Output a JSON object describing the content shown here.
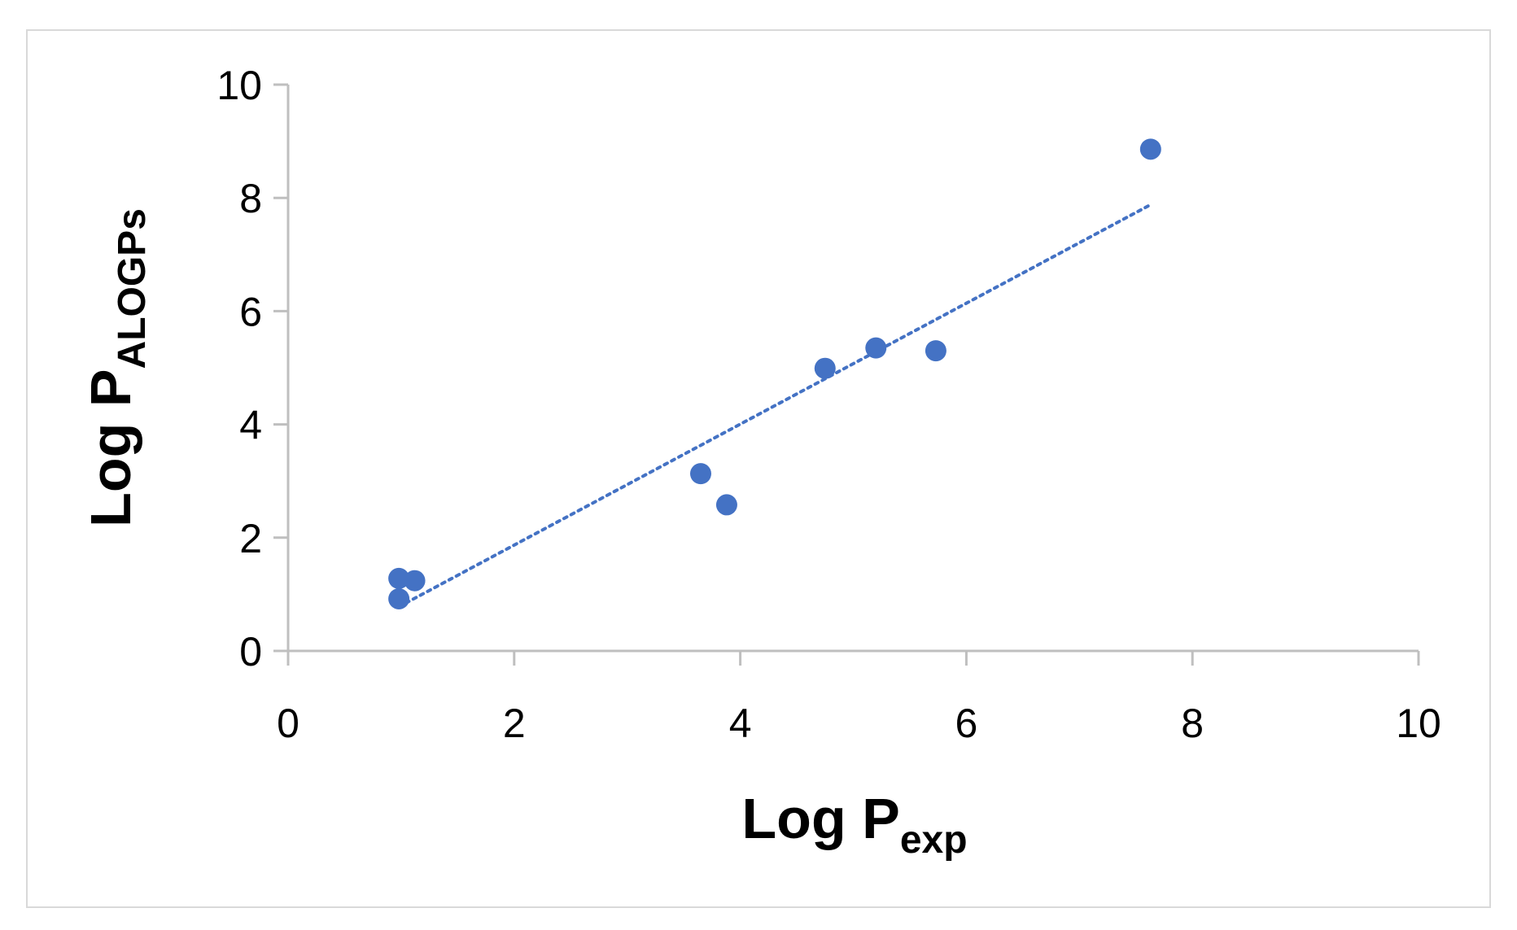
{
  "chart_data": {
    "type": "scatter",
    "title": "",
    "xlabel": {
      "main": "Log P",
      "subscript": "exp"
    },
    "ylabel": {
      "main": "Log P",
      "subscript": "ALOGPs"
    },
    "xlim": [
      0,
      10
    ],
    "ylim": [
      0,
      10
    ],
    "x_ticks": [
      0,
      2,
      4,
      6,
      8,
      10
    ],
    "y_ticks": [
      0,
      2,
      4,
      6,
      8,
      10
    ],
    "grid": false,
    "legend": "none",
    "series": [
      {
        "points": [
          {
            "x": 0.98,
            "y": 1.28
          },
          {
            "x": 1.12,
            "y": 1.24
          },
          {
            "x": 0.98,
            "y": 0.92
          },
          {
            "x": 3.65,
            "y": 3.13
          },
          {
            "x": 3.88,
            "y": 2.58
          },
          {
            "x": 4.75,
            "y": 4.99
          },
          {
            "x": 5.2,
            "y": 5.35
          },
          {
            "x": 5.73,
            "y": 5.3
          },
          {
            "x": 7.63,
            "y": 8.86
          }
        ],
        "color": "#4472c4"
      }
    ],
    "trendline": {
      "style": "dotted",
      "color": "#4472c4",
      "from": {
        "x": 0.98,
        "y": 0.78
      },
      "to": {
        "x": 7.63,
        "y": 7.88
      }
    },
    "axis_color": "#bfbfbf"
  }
}
